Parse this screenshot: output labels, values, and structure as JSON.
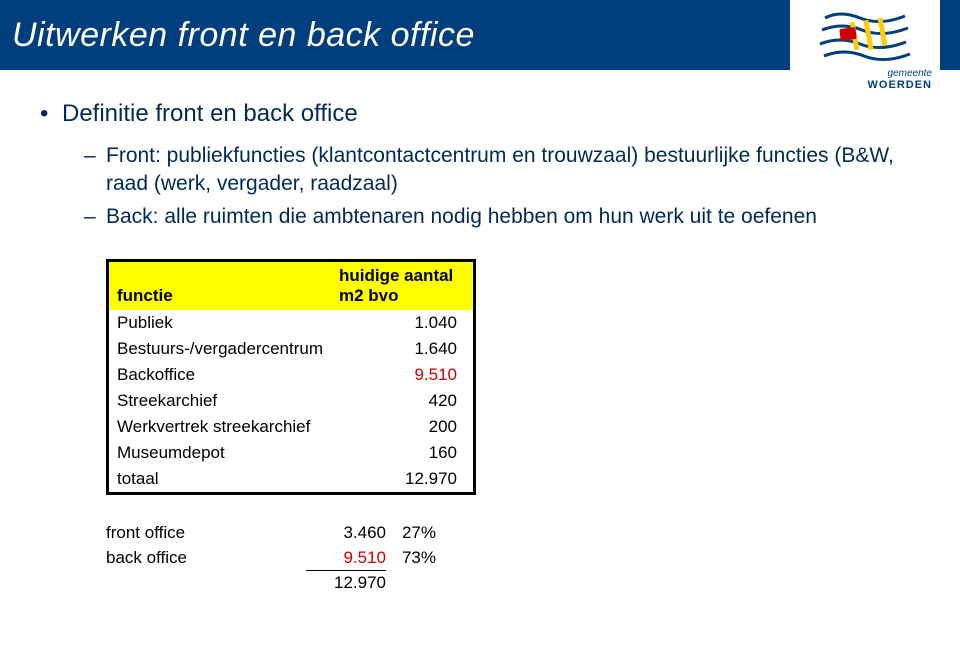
{
  "title": "Uitwerken front en back office",
  "logo": {
    "gemeente": "gemeente",
    "city": "WOERDEN"
  },
  "bullet_heading": "Definitie front en back office",
  "sub_items": [
    "Front: publiekfuncties (klantcontactcentrum en trouwzaal) bestuurlijke functies (B&W, raad (werk, vergader, raadzaal)",
    "Back: alle ruimten die ambtenaren nodig hebben om hun werk uit te oefenen"
  ],
  "table": {
    "header_label": "functie",
    "header_value": "huidige aantal m2 bvo",
    "rows": [
      {
        "label": "Publiek",
        "value": "1.040",
        "red": false
      },
      {
        "label": "Bestuurs-/vergadercentrum",
        "value": "1.640",
        "red": false
      },
      {
        "label": "Backoffice",
        "value": "9.510",
        "red": true
      },
      {
        "label": "Streekarchief",
        "value": "420",
        "red": false
      },
      {
        "label": "Werkvertrek streekarchief",
        "value": "200",
        "red": false
      },
      {
        "label": "Museumdepot",
        "value": "160",
        "red": false
      }
    ],
    "total_label": "totaal",
    "total_value": "12.970"
  },
  "summary": {
    "front_label": "front office",
    "front_value": "3.460",
    "front_pct": "27%",
    "back_label": "back office",
    "back_value": "9.510",
    "back_pct": "73%",
    "total_value": "12.970"
  },
  "colors": {
    "title_bg": "#003e7e",
    "title_text": "#ffffff",
    "body_text": "#002a56",
    "highlight_bg": "#ffff00",
    "red_text": "#cc0000",
    "table_border": "#000000"
  }
}
